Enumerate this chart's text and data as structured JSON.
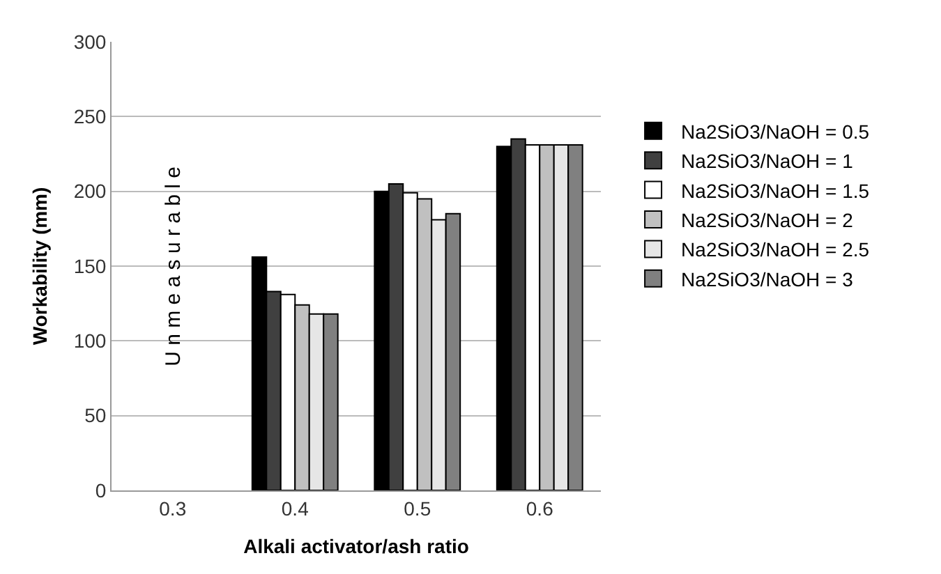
{
  "chart_data": {
    "type": "bar",
    "xlabel": "Alkali activator/ash ratio",
    "ylabel": "Workability (mm)",
    "categories": [
      "0.3",
      "0.4",
      "0.5",
      "0.6"
    ],
    "series": [
      {
        "name": "Na2SiO3/NaOH = 0.5",
        "color": "#000000",
        "values": [
          null,
          156,
          200,
          230
        ]
      },
      {
        "name": "Na2SiO3/NaOH = 1",
        "color": "#404040",
        "values": [
          null,
          133,
          205,
          235
        ]
      },
      {
        "name": "Na2SiO3/NaOH = 1.5",
        "color": "#ffffff",
        "values": [
          null,
          131,
          199,
          231
        ]
      },
      {
        "name": "Na2SiO3/NaOH = 2",
        "color": "#c0c0c0",
        "values": [
          null,
          124,
          195,
          231
        ]
      },
      {
        "name": "Na2SiO3/NaOH = 2.5",
        "color": "#e6e6e6",
        "values": [
          null,
          118,
          181,
          231
        ]
      },
      {
        "name": "Na2SiO3/NaOH = 3",
        "color": "#808080",
        "values": [
          null,
          118,
          185,
          231
        ]
      }
    ],
    "ylim": [
      0,
      300
    ],
    "yticks": [
      0,
      50,
      100,
      150,
      200,
      250,
      300
    ],
    "grid": "y",
    "legend": "right",
    "annotations": [
      "U n m e a s u r a b l e"
    ]
  }
}
